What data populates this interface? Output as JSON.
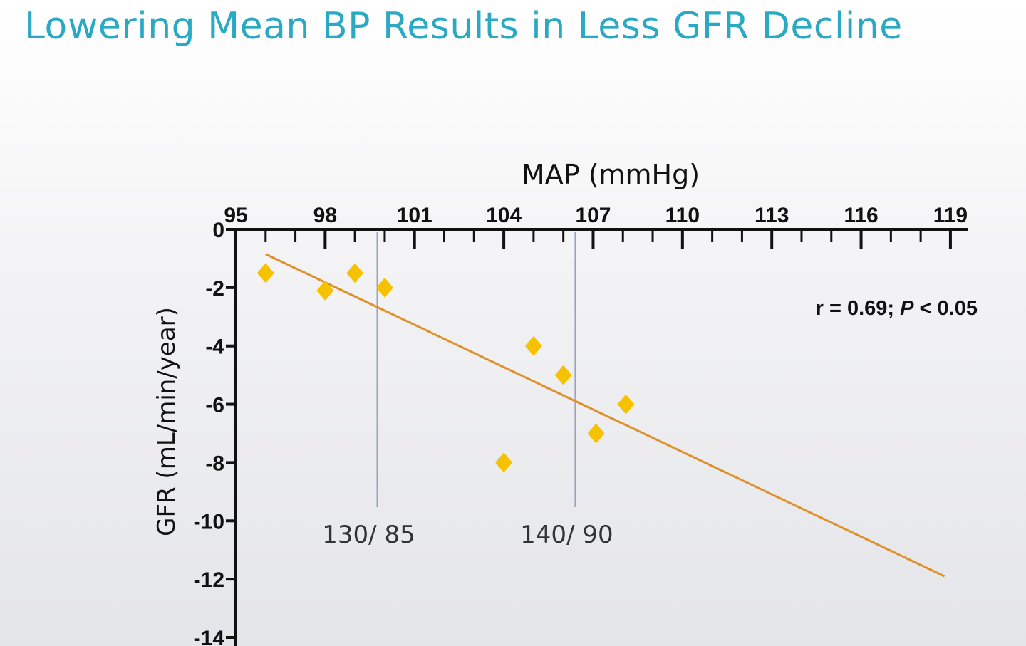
{
  "slide": {
    "title": "Lowering Mean BP Results in Less GFR Decline"
  },
  "chart_data": {
    "type": "scatter",
    "title": "",
    "xlabel": "MAP (mmHg)",
    "ylabel": "GFR (mL/min/year)",
    "xlim": [
      95,
      119.6
    ],
    "ylim": [
      -14,
      0
    ],
    "x_ticks": [
      95,
      98,
      101,
      104,
      107,
      110,
      113,
      116,
      119
    ],
    "y_ticks": [
      0,
      -2,
      -4,
      -6,
      -8,
      -10,
      -12,
      -14
    ],
    "x_axis_position": "top",
    "grid": false,
    "annotation_main": "r = 0.69; ",
    "annotation_p": "P",
    "annotation_tail": " < 0.05",
    "points": [
      {
        "x": 96.0,
        "y": -1.5
      },
      {
        "x": 98.0,
        "y": -2.1
      },
      {
        "x": 99.0,
        "y": -1.5
      },
      {
        "x": 100.0,
        "y": -2.0
      },
      {
        "x": 104.0,
        "y": -8.0
      },
      {
        "x": 105.0,
        "y": -4.0
      },
      {
        "x": 106.0,
        "y": -5.0
      },
      {
        "x": 107.1,
        "y": -7.0
      },
      {
        "x": 108.1,
        "y": -6.0
      }
    ],
    "regression_line": {
      "x1": 96.0,
      "y1": -0.85,
      "x2": 118.8,
      "y2": -11.9
    },
    "reference_lines": [
      {
        "x": 99.75,
        "label": "130/ 85"
      },
      {
        "x": 106.4,
        "label": "140/ 90"
      }
    ],
    "colors": {
      "points": "#f6c200",
      "regression": "#e0902a",
      "reference": "#9aa4bd",
      "axis": "#111111",
      "title": "#2aa9c4"
    }
  }
}
